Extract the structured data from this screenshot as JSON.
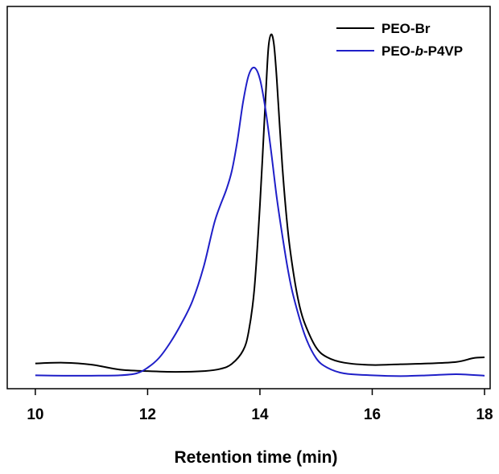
{
  "chart_data": {
    "type": "line",
    "title": "",
    "xlabel": "Retention time (min)",
    "ylabel": "",
    "xlim": [
      9.5,
      18.1
    ],
    "ylim": [
      0,
      1
    ],
    "x_ticks": [
      10,
      12,
      14,
      16,
      18
    ],
    "x_tick_labels": [
      "10",
      "12",
      "14",
      "16",
      "18"
    ],
    "y_ticks_shown": false,
    "grid": false,
    "legend_position": "top-right",
    "series": [
      {
        "name": "PEO-Br",
        "legend_prefix": "PEO-",
        "legend_italic": "",
        "legend_suffix": "Br",
        "color": "#000000",
        "points": [
          [
            10.0,
            0.066
          ],
          [
            10.5,
            0.068
          ],
          [
            11.0,
            0.063
          ],
          [
            11.5,
            0.05
          ],
          [
            12.0,
            0.046
          ],
          [
            12.5,
            0.044
          ],
          [
            13.0,
            0.046
          ],
          [
            13.3,
            0.052
          ],
          [
            13.5,
            0.065
          ],
          [
            13.7,
            0.1
          ],
          [
            13.8,
            0.15
          ],
          [
            13.9,
            0.26
          ],
          [
            14.0,
            0.48
          ],
          [
            14.1,
            0.76
          ],
          [
            14.15,
            0.89
          ],
          [
            14.2,
            0.927
          ],
          [
            14.25,
            0.9
          ],
          [
            14.3,
            0.81
          ],
          [
            14.4,
            0.58
          ],
          [
            14.5,
            0.41
          ],
          [
            14.6,
            0.3
          ],
          [
            14.7,
            0.22
          ],
          [
            14.8,
            0.17
          ],
          [
            15.0,
            0.108
          ],
          [
            15.2,
            0.082
          ],
          [
            15.5,
            0.068
          ],
          [
            16.0,
            0.062
          ],
          [
            16.5,
            0.064
          ],
          [
            17.0,
            0.066
          ],
          [
            17.5,
            0.07
          ],
          [
            17.8,
            0.08
          ],
          [
            18.0,
            0.082
          ]
        ]
      },
      {
        "name": "PEO-b-P4VP",
        "legend_prefix": "PEO-",
        "legend_italic": "b",
        "legend_suffix": "-P4VP",
        "color": "#1f1fc8",
        "points": [
          [
            10.0,
            0.035
          ],
          [
            10.5,
            0.034
          ],
          [
            11.0,
            0.034
          ],
          [
            11.5,
            0.035
          ],
          [
            11.8,
            0.04
          ],
          [
            12.0,
            0.055
          ],
          [
            12.2,
            0.08
          ],
          [
            12.4,
            0.12
          ],
          [
            12.6,
            0.17
          ],
          [
            12.8,
            0.23
          ],
          [
            13.0,
            0.32
          ],
          [
            13.2,
            0.44
          ],
          [
            13.4,
            0.52
          ],
          [
            13.5,
            0.57
          ],
          [
            13.6,
            0.65
          ],
          [
            13.7,
            0.75
          ],
          [
            13.8,
            0.82
          ],
          [
            13.9,
            0.84
          ],
          [
            14.0,
            0.81
          ],
          [
            14.1,
            0.73
          ],
          [
            14.2,
            0.62
          ],
          [
            14.3,
            0.5
          ],
          [
            14.4,
            0.4
          ],
          [
            14.5,
            0.31
          ],
          [
            14.6,
            0.24
          ],
          [
            14.8,
            0.14
          ],
          [
            15.0,
            0.08
          ],
          [
            15.2,
            0.055
          ],
          [
            15.5,
            0.04
          ],
          [
            16.0,
            0.035
          ],
          [
            16.5,
            0.033
          ],
          [
            17.0,
            0.035
          ],
          [
            17.5,
            0.038
          ],
          [
            18.0,
            0.034
          ]
        ]
      }
    ]
  }
}
